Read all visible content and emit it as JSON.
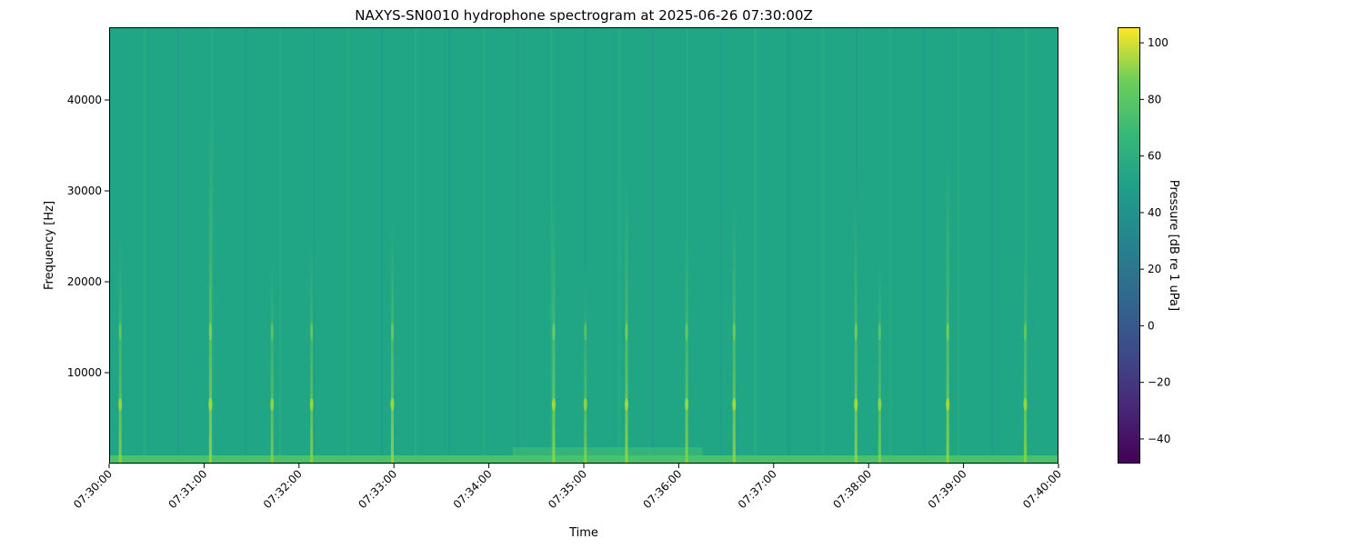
{
  "chart_data": {
    "type": "heatmap",
    "title": "NAXYS-SN0010 hydrophone spectrogram at 2025-06-26 07:30:00Z",
    "xlabel": "Time",
    "ylabel": "Frequency [Hz]",
    "x_ticks": [
      "07:30:00",
      "07:31:00",
      "07:32:00",
      "07:33:00",
      "07:34:00",
      "07:35:00",
      "07:36:00",
      "07:37:00",
      "07:38:00",
      "07:39:00",
      "07:40:00"
    ],
    "xlim_seconds_from_start": [
      0,
      600
    ],
    "y_ticks": [
      10000,
      20000,
      30000,
      40000
    ],
    "ylim": [
      0,
      48000
    ],
    "colormap": "viridis",
    "colorbar": {
      "label": "Pressure [dB re 1 uPa]",
      "ticks": [
        -40,
        -20,
        0,
        20,
        40,
        60,
        80,
        100
      ],
      "range": [
        -48.7,
        105.5
      ]
    },
    "background_level_db": 47,
    "low_frequency_band": {
      "max_hz": 500,
      "level_db": 62
    },
    "transient_events": [
      {
        "time": "07:30:07",
        "level_db": 60
      },
      {
        "time": "07:31:04",
        "level_db": 72
      },
      {
        "time": "07:31:43",
        "level_db": 58
      },
      {
        "time": "07:32:08",
        "level_db": 60
      },
      {
        "time": "07:32:59",
        "level_db": 62
      },
      {
        "time": "07:34:41",
        "level_db": 64
      },
      {
        "time": "07:35:01",
        "level_db": 58
      },
      {
        "time": "07:35:27",
        "level_db": 66
      },
      {
        "time": "07:36:05",
        "level_db": 60
      },
      {
        "time": "07:36:35",
        "level_db": 64
      },
      {
        "time": "07:37:52",
        "level_db": 66
      },
      {
        "time": "07:38:07",
        "level_db": 58
      },
      {
        "time": "07:38:50",
        "level_db": 68
      },
      {
        "time": "07:39:39",
        "level_db": 60
      }
    ]
  }
}
